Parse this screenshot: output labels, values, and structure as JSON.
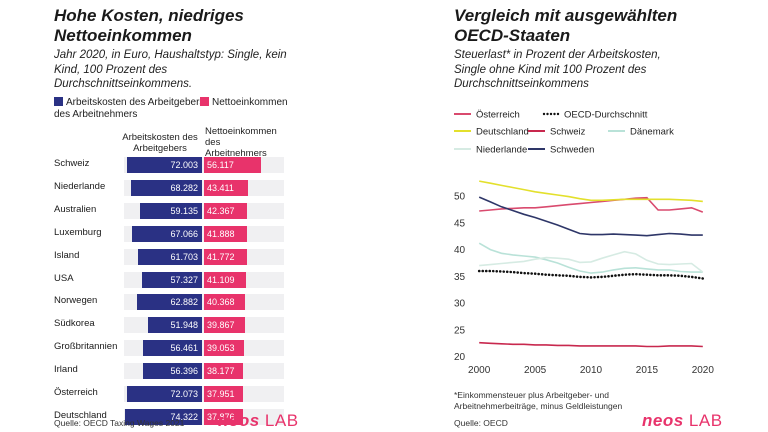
{
  "left": {
    "title_line1": "Hohe Kosten, niedriges",
    "title_line2": "Nettoeinkommen",
    "subtitle_line1": "Jahr 2020, in Euro, Haushaltstyp: Single, kein",
    "subtitle_line2": "Kind, 100 Prozent des",
    "subtitle_line3": "Durchschnittseinkommens.",
    "legend_cost_line1": "Arbeitskosten des Arbeitgebers",
    "legend_cost_line2": "des Arbeitnehmers",
    "legend_net": "Nettoeinkommen",
    "col_cost_line1": "Arbeitskosten des",
    "col_cost_line2": "Arbeitgebers",
    "col_net_line1": "Nettoeinkommen",
    "col_net_line2": "des",
    "col_net_line3": "Arbeitnehmers",
    "source": "Quelle: OECD Taxing Wages 2021",
    "logo_bold": "neos",
    "logo_light": "LAB"
  },
  "right": {
    "title_line1": "Vergleich mit ausgewählten",
    "title_line2": "OECD-Staaten",
    "subtitle_line1": "Steuerlast* in Prozent der Arbeitskosten,",
    "subtitle_line2": "Single ohne Kind mit 100 Prozent des",
    "subtitle_line3": "Durchschnittseinkommens",
    "footnote_line1": "*Einkommensteuer plus Arbeitgeber- und",
    "footnote_line2": "Arbeitnehmerbeiträge, minus Geldleistungen",
    "source": "Quelle: OECD",
    "logo_bold": "neos",
    "logo_light": "LAB"
  },
  "colors": {
    "navy": "#2a3184",
    "pink": "#e8336b"
  },
  "chart_data": [
    {
      "type": "bar",
      "orientation": "horizontal",
      "title": "Hohe Kosten, niedriges Nettoeinkommen",
      "categories": [
        "Schweiz",
        "Niederlande",
        "Australien",
        "Luxemburg",
        "Island",
        "USA",
        "Norwegen",
        "Südkorea",
        "Großbritannien",
        "Irland",
        "Österreich",
        "Deutschland"
      ],
      "series": [
        {
          "name": "Arbeitskosten des Arbeitgebers des Arbeitnehmers",
          "color": "#2a3184",
          "values": [
            72003,
            68282,
            59135,
            67066,
            61703,
            57327,
            62882,
            51948,
            56461,
            56396,
            72073,
            74322
          ],
          "labels": [
            "72.003",
            "68.282",
            "59.135",
            "67.066",
            "61.703",
            "57.327",
            "62.882",
            "51.948",
            "56.461",
            "56.396",
            "72.073",
            "74.322"
          ]
        },
        {
          "name": "Nettoeinkommen",
          "color": "#e8336b",
          "values": [
            56117,
            43411,
            42367,
            41888,
            41772,
            41109,
            40368,
            39867,
            39053,
            38177,
            37951,
            37876
          ],
          "labels": [
            "56.117",
            "43.411",
            "42.367",
            "41.888",
            "41.772",
            "41.109",
            "40.368",
            "39.867",
            "39.053",
            "38.177",
            "37.951",
            "37.876"
          ]
        }
      ]
    },
    {
      "type": "line",
      "title": "Vergleich mit ausgewählten OECD-Staaten",
      "x": [
        2000,
        2001,
        2002,
        2003,
        2004,
        2005,
        2006,
        2007,
        2008,
        2009,
        2010,
        2011,
        2012,
        2013,
        2014,
        2015,
        2016,
        2017,
        2018,
        2019,
        2020
      ],
      "xticks": [
        2000,
        2005,
        2010,
        2015,
        2020
      ],
      "yticks": [
        20,
        25,
        30,
        35,
        40,
        45,
        50
      ],
      "xlim": [
        1999,
        2021
      ],
      "ylim": [
        19,
        53
      ],
      "series": [
        {
          "name": "Österreich",
          "color": "#d94a6e",
          "dashed": false,
          "values": [
            47.2,
            47.4,
            47.6,
            47.7,
            47.8,
            47.8,
            48.0,
            48.2,
            48.4,
            48.6,
            48.8,
            49.0,
            49.2,
            49.4,
            49.6,
            49.7,
            47.4,
            47.4,
            47.6,
            47.8,
            47.0
          ]
        },
        {
          "name": "OECD-Durchschnitt",
          "color": "#111111",
          "dashed": true,
          "values": [
            36.0,
            36.0,
            35.9,
            35.8,
            35.6,
            35.5,
            35.3,
            35.2,
            35.1,
            34.9,
            34.8,
            34.9,
            35.1,
            35.3,
            35.4,
            35.3,
            35.2,
            35.2,
            35.1,
            34.9,
            34.6
          ]
        },
        {
          "name": "Deutschland",
          "color": "#e3e02c",
          "dashed": false,
          "values": [
            52.8,
            52.4,
            52.0,
            51.6,
            51.2,
            50.8,
            50.5,
            50.2,
            49.9,
            49.5,
            49.2,
            49.2,
            49.3,
            49.4,
            49.4,
            49.4,
            49.4,
            49.4,
            49.3,
            49.2,
            49.0
          ]
        },
        {
          "name": "Schweiz",
          "color": "#c8284e",
          "dashed": false,
          "values": [
            22.6,
            22.5,
            22.4,
            22.3,
            22.3,
            22.2,
            22.2,
            22.1,
            22.1,
            22.0,
            22.0,
            22.0,
            22.0,
            22.0,
            22.0,
            21.9,
            21.9,
            22.0,
            22.0,
            22.0,
            21.9
          ]
        },
        {
          "name": "Dänemark",
          "color": "#b9e2d8",
          "dashed": false,
          "values": [
            41.2,
            40.0,
            39.3,
            39.0,
            38.8,
            38.6,
            38.1,
            37.5,
            36.7,
            36.0,
            35.6,
            35.8,
            36.2,
            36.5,
            36.6,
            36.4,
            36.2,
            36.2,
            35.9,
            35.8,
            35.8
          ]
        },
        {
          "name": "Niederlande",
          "color": "#d6ebe3",
          "dashed": false,
          "values": [
            37.0,
            37.2,
            37.4,
            37.6,
            37.8,
            38.2,
            38.5,
            38.4,
            38.2,
            37.6,
            37.7,
            38.4,
            39.0,
            39.6,
            39.2,
            38.0,
            37.3,
            37.2,
            37.3,
            37.4,
            35.8
          ]
        },
        {
          "name": "Schweden",
          "color": "#2e3668",
          "dashed": false,
          "values": [
            49.8,
            48.9,
            48.0,
            47.3,
            46.6,
            46.0,
            45.3,
            44.6,
            43.8,
            43.0,
            42.8,
            42.8,
            42.9,
            42.8,
            42.7,
            42.6,
            42.8,
            43.0,
            42.9,
            42.7,
            42.7
          ]
        }
      ],
      "footnote": "*Einkommensteuer plus Arbeitgeber- und Arbeitnehmerbeiträge, minus Geldleistungen"
    }
  ]
}
